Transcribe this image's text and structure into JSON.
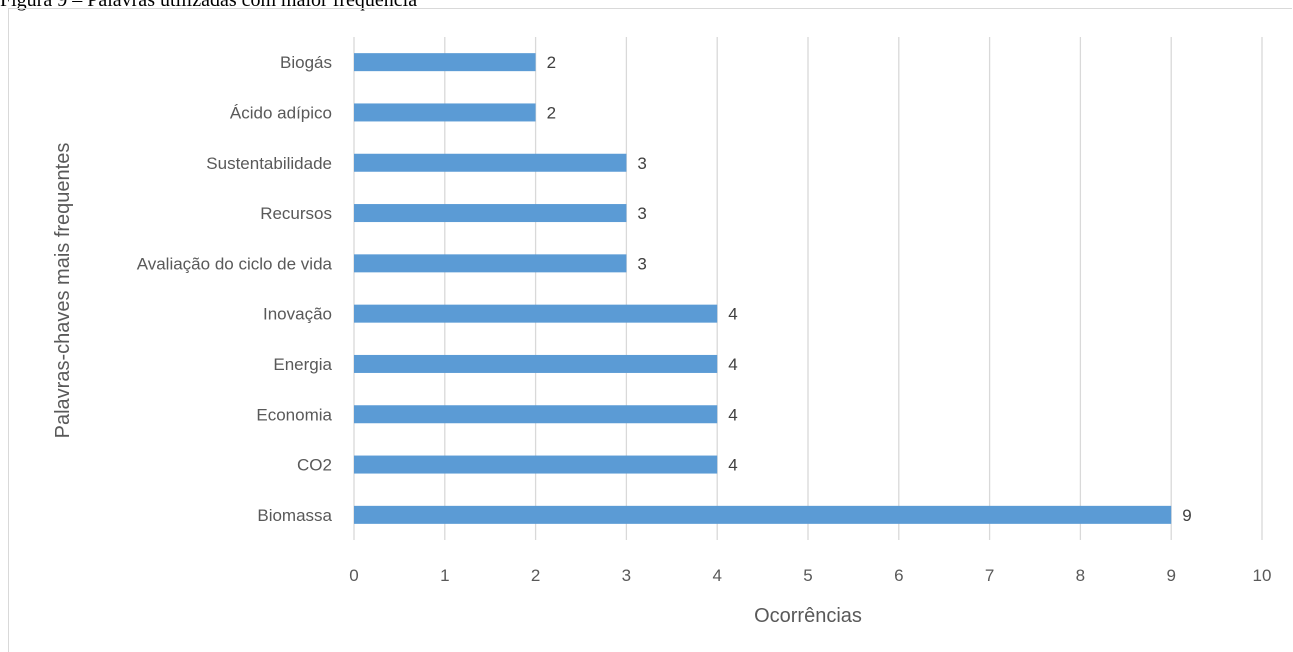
{
  "caption": "Figura 9 – Palavras utilizadas com maior frequência",
  "chart_data": {
    "type": "bar",
    "orientation": "horizontal",
    "title": "",
    "xlabel": "Ocorrências",
    "ylabel": "Palavras-chaves mais frequentes",
    "categories": [
      "Biomassa",
      "CO2",
      "Economia",
      "Energia",
      "Inovação",
      "Avaliação do ciclo de vida",
      "Recursos",
      "Sustentabilidade",
      "Ácido adípico",
      "Biogás"
    ],
    "values": [
      9,
      4,
      4,
      4,
      4,
      3,
      3,
      3,
      2,
      2
    ],
    "xlim": [
      0,
      10
    ],
    "xticks": [
      "0",
      "1",
      "2",
      "3",
      "4",
      "5",
      "6",
      "7",
      "8",
      "9",
      "10"
    ],
    "data_labels": true,
    "grid": "vertical",
    "legend": "none",
    "bar_color": "#5b9bd5"
  }
}
